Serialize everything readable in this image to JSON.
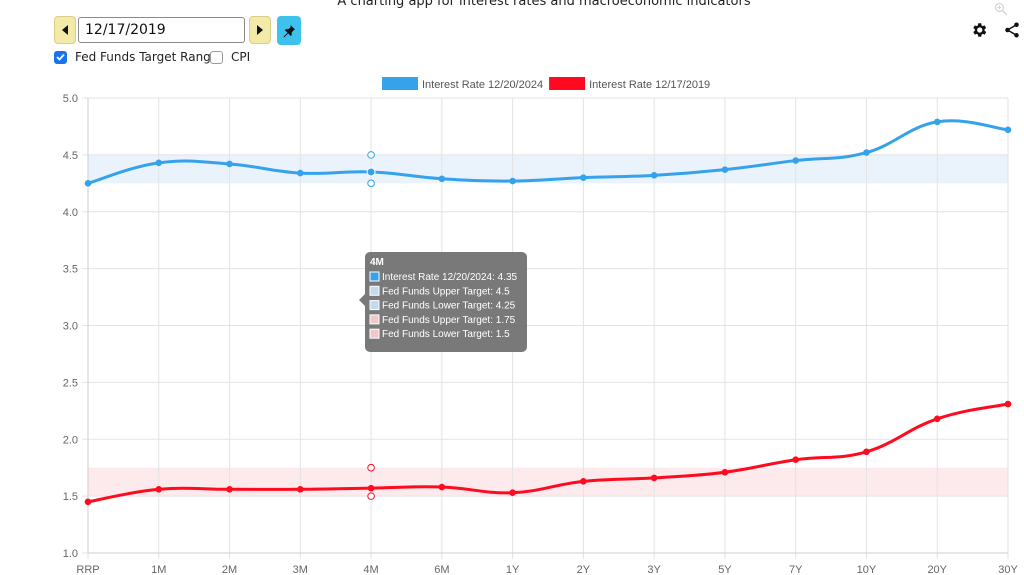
{
  "header": {
    "subtitle": "A charting app for interest rates and macroeconomic indicators"
  },
  "controls": {
    "date_value": "12/17/2019",
    "prev_icon": "caret-left-icon",
    "next_icon": "caret-right-icon",
    "pin_icon": "pin-icon",
    "checkboxes": [
      {
        "label": "Fed Funds Target Range",
        "checked": true
      },
      {
        "label": "CPI",
        "checked": false
      }
    ],
    "right_icons": [
      "gear-icon",
      "share-icon",
      "zoom-icon"
    ]
  },
  "colors": {
    "blue": "#36a2eb",
    "red": "#ff0a1f",
    "blue_band": "#eaf3fc",
    "red_band": "#fdeaec",
    "tooltip_bg": "#6e6e6e"
  },
  "chart_data": {
    "type": "line",
    "categories": [
      "RRP",
      "1M",
      "2M",
      "3M",
      "4M",
      "6M",
      "1Y",
      "2Y",
      "3Y",
      "5Y",
      "7Y",
      "10Y",
      "20Y",
      "30Y"
    ],
    "ylim": [
      1.0,
      5.0
    ],
    "yticks": [
      "1.0",
      "1.5",
      "2.0",
      "2.5",
      "3.0",
      "3.5",
      "4.0",
      "4.5",
      "5.0"
    ],
    "grid": true,
    "legend_position": "top",
    "series": [
      {
        "name": "Interest Rate 12/20/2024",
        "color": "#36a2eb",
        "values": [
          4.25,
          4.43,
          4.42,
          4.34,
          4.35,
          4.29,
          4.27,
          4.3,
          4.32,
          4.37,
          4.45,
          4.52,
          4.79,
          4.72
        ]
      },
      {
        "name": "Interest Rate 12/17/2019",
        "color": "#ff0a1f",
        "values": [
          1.45,
          1.56,
          1.56,
          1.56,
          1.57,
          1.58,
          1.53,
          1.63,
          1.66,
          1.71,
          1.82,
          1.89,
          2.18,
          2.31
        ]
      }
    ],
    "target_ranges": [
      {
        "upper": 4.5,
        "lower": 4.25,
        "color": "#36a2eb"
      },
      {
        "upper": 1.75,
        "lower": 1.5,
        "color": "#ff0a1f"
      }
    ],
    "tooltip": {
      "category": "4M",
      "title": "4M",
      "lines": [
        {
          "text": "Interest Rate 12/20/2024: 4.35",
          "color": "#36a2eb"
        },
        {
          "text": "Fed Funds Upper Target: 4.5",
          "color": "#c6d9ea"
        },
        {
          "text": "Fed Funds Lower Target: 4.25",
          "color": "#c6d9ea"
        },
        {
          "text": "Fed Funds Upper Target: 1.75",
          "color": "#f2c7cb"
        },
        {
          "text": "Fed Funds Lower Target: 1.5",
          "color": "#f2c7cb"
        }
      ]
    }
  }
}
